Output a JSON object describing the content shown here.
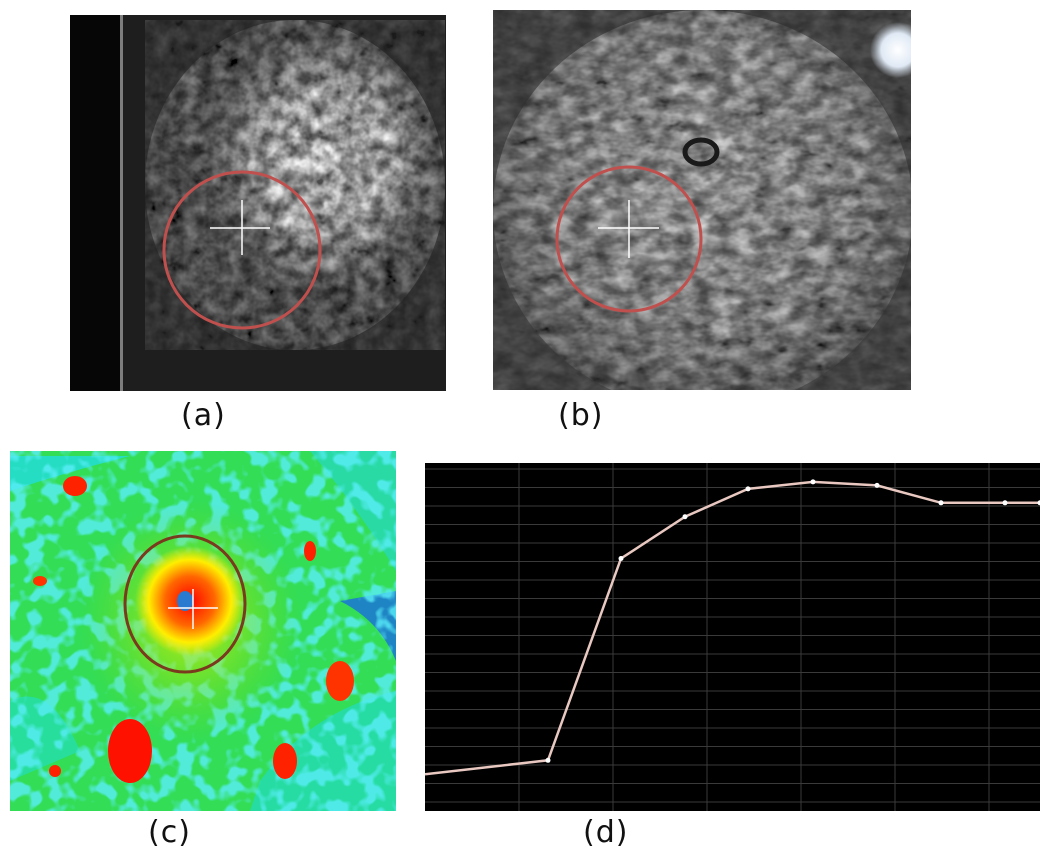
{
  "panels": [
    {
      "caption": "(a)"
    },
    {
      "caption": "(b)"
    },
    {
      "caption": "(c)"
    },
    {
      "caption": "(d)"
    }
  ],
  "curve": {
    "description_free": true,
    "y_values": [
      0.12,
      0.16,
      0.74,
      0.86,
      0.94,
      0.96,
      0.95,
      0.9,
      0.9,
      0.9,
      0.91
    ]
  },
  "colors": {
    "roi_circle": "#c0504d",
    "roi_circle_c": "#7a3a1e",
    "curve_line": "#e8c8c0",
    "grid": "#3a3a3a"
  }
}
